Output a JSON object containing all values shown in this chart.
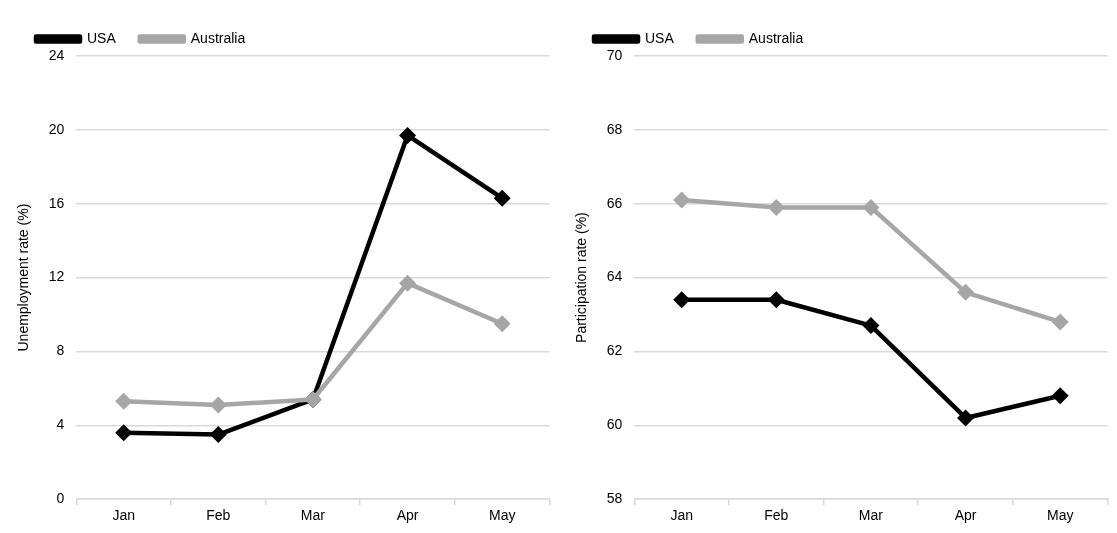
{
  "chart_data": [
    {
      "type": "line",
      "ylabel": "Unemployment rate (%)",
      "categories": [
        "Jan",
        "Feb",
        "Mar",
        "Apr",
        "May"
      ],
      "ylim": [
        0,
        24
      ],
      "yticks": [
        0,
        4,
        8,
        12,
        16,
        20,
        24
      ],
      "grid": "y",
      "legend": "top left",
      "marker": "diamond",
      "line_style": "solid",
      "series": [
        {
          "name": "USA",
          "color": "#000000",
          "values": [
            3.6,
            3.5,
            5.4,
            19.7,
            16.3
          ]
        },
        {
          "name": "Australia",
          "color": "#a6a6a6",
          "values": [
            5.3,
            5.1,
            5.4,
            11.7,
            9.5
          ]
        }
      ]
    },
    {
      "type": "line",
      "ylabel": "Participation rate (%)",
      "categories": [
        "Jan",
        "Feb",
        "Mar",
        "Apr",
        "May"
      ],
      "ylim": [
        58,
        70
      ],
      "yticks": [
        58,
        60,
        62,
        64,
        66,
        68,
        70
      ],
      "grid": "y",
      "legend": "top left",
      "marker": "diamond",
      "line_style": "solid",
      "series": [
        {
          "name": "USA",
          "color": "#000000",
          "values": [
            63.4,
            63.4,
            62.7,
            60.2,
            60.8
          ]
        },
        {
          "name": "Australia",
          "color": "#a6a6a6",
          "values": [
            66.1,
            65.9,
            65.9,
            63.6,
            62.8
          ]
        }
      ]
    }
  ]
}
